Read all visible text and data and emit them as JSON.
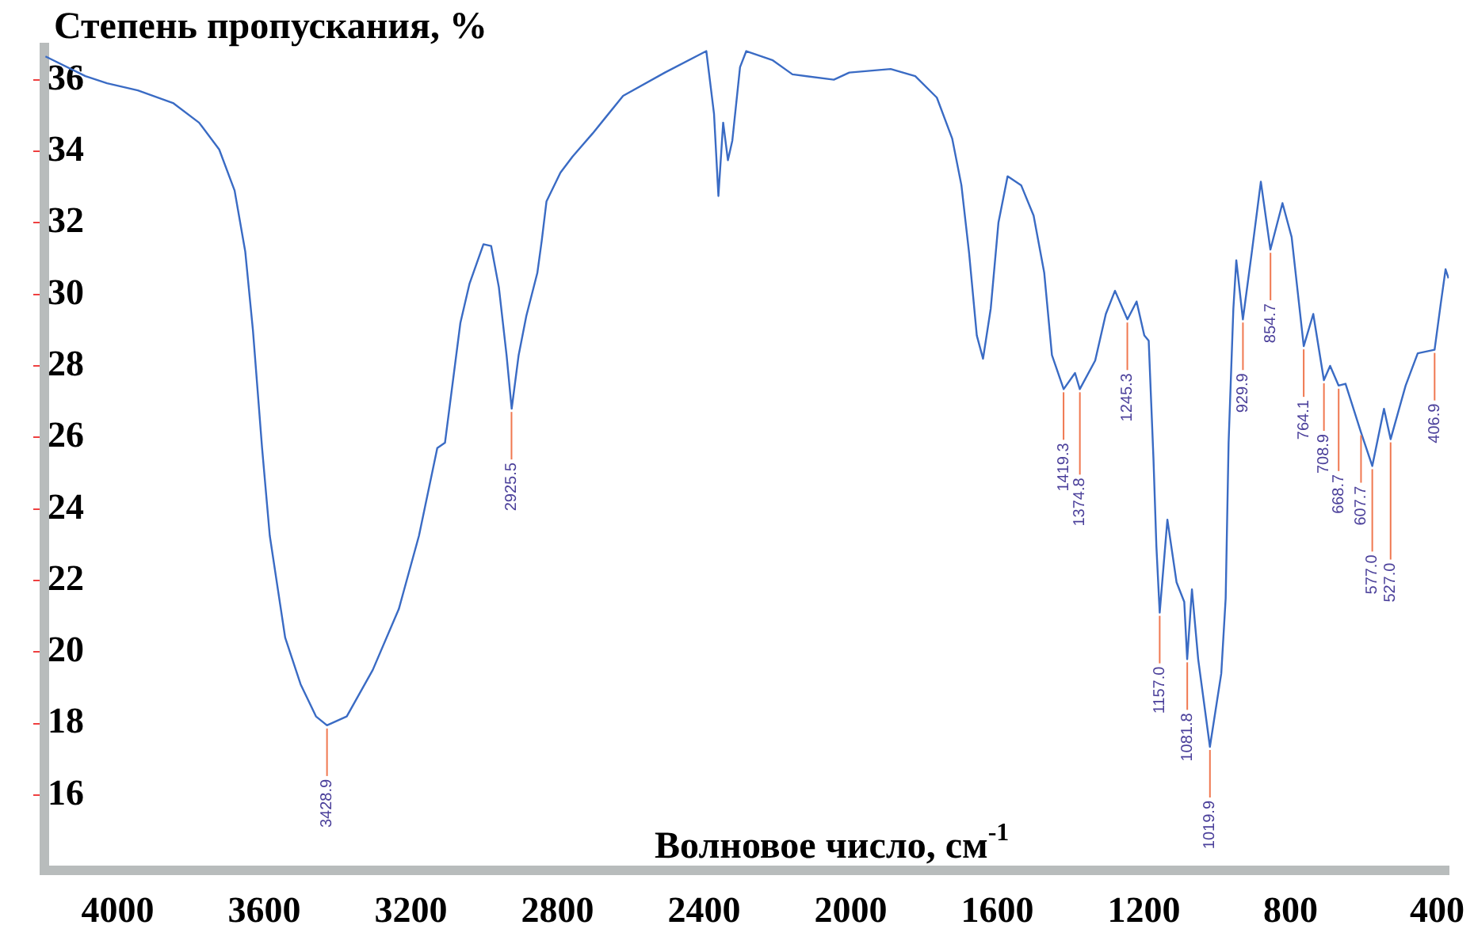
{
  "chart_data": {
    "type": "line",
    "title": "Степень пропускания, %",
    "xlabel": "Волновое число, см$^{-1}$",
    "color": "#3a6bc4",
    "x": [
      4197,
      4088,
      4029,
      3945,
      3849,
      3778,
      3723,
      3681,
      3652,
      3631,
      3606,
      3585,
      3543,
      3501,
      3459,
      3429,
      3375,
      3304,
      3233,
      3178,
      3128,
      3107,
      3065,
      3040,
      3002,
      2981,
      2960,
      2939,
      2925,
      2906,
      2885,
      2855,
      2843,
      2830,
      2792,
      2759,
      2704,
      2621,
      2507,
      2394,
      2373,
      2361,
      2348,
      2335,
      2323,
      2302,
      2285,
      2214,
      2159,
      2046,
      2004,
      1891,
      1824,
      1765,
      1723,
      1698,
      1677,
      1656,
      1639,
      1618,
      1597,
      1572,
      1535,
      1501,
      1472,
      1451,
      1419,
      1388,
      1375,
      1333,
      1304,
      1279,
      1245,
      1220,
      1199,
      1187,
      1174,
      1166,
      1157,
      1136,
      1111,
      1090,
      1082,
      1069,
      1052,
      1020,
      989,
      977,
      969,
      956,
      948,
      930,
      906,
      881,
      855,
      822,
      797,
      764,
      738,
      709,
      692,
      669,
      650,
      608,
      577,
      545,
      527,
      486,
      453,
      407,
      390,
      377,
      369
    ],
    "values": [
      36.65,
      36.1,
      35.9,
      35.7,
      35.35,
      34.8,
      34.05,
      32.9,
      31.2,
      29.0,
      25.7,
      23.25,
      20.4,
      19.1,
      18.2,
      17.95,
      18.2,
      19.5,
      21.2,
      23.25,
      25.7,
      25.85,
      29.2,
      30.3,
      31.4,
      31.35,
      30.2,
      28.3,
      26.8,
      28.3,
      29.4,
      30.6,
      31.5,
      32.6,
      33.4,
      33.85,
      34.5,
      35.55,
      36.2,
      36.8,
      35.05,
      32.75,
      34.8,
      33.75,
      34.3,
      36.35,
      36.8,
      36.55,
      36.15,
      36.0,
      36.2,
      36.3,
      36.1,
      35.5,
      34.35,
      33.05,
      31.15,
      28.85,
      28.2,
      29.6,
      32.0,
      33.3,
      33.05,
      32.2,
      30.6,
      28.3,
      27.35,
      27.8,
      27.35,
      28.15,
      29.45,
      30.1,
      29.3,
      29.8,
      28.85,
      28.7,
      25.4,
      22.95,
      21.1,
      23.7,
      21.95,
      21.4,
      19.8,
      21.75,
      19.8,
      17.35,
      19.4,
      21.5,
      25.85,
      29.6,
      30.95,
      29.3,
      31.15,
      33.15,
      31.25,
      32.55,
      31.6,
      28.55,
      29.45,
      27.6,
      28.0,
      27.45,
      27.5,
      26.15,
      25.2,
      26.8,
      25.95,
      27.45,
      28.35,
      28.45,
      29.75,
      30.7,
      30.45
    ],
    "xlim": [
      4200,
      368
    ],
    "xticks": [
      4000,
      3600,
      3200,
      2800,
      2400,
      2000,
      1600,
      1200,
      800,
      400
    ],
    "ylim": [
      13.9,
      36.9
    ],
    "yticks": [
      16,
      18,
      20,
      22,
      24,
      26,
      28,
      30,
      32,
      34,
      36
    ],
    "annotations": [
      {
        "text": "3428.9",
        "x": 3428.9,
        "y": 17.95
      },
      {
        "text": "2925.5",
        "x": 2925.5,
        "y": 26.8
      },
      {
        "text": "1419.3",
        "x": 1419.3,
        "y": 27.35
      },
      {
        "text": "1374.8",
        "x": 1374.8,
        "y": 27.35
      },
      {
        "text": "1245.3",
        "x": 1245.3,
        "y": 29.3
      },
      {
        "text": "1157.0",
        "x": 1157.0,
        "y": 21.1
      },
      {
        "text": "1081.8",
        "x": 1081.8,
        "y": 19.8
      },
      {
        "text": "1019.9",
        "x": 1019.9,
        "y": 17.35
      },
      {
        "text": "929.9",
        "x": 929.9,
        "y": 29.3
      },
      {
        "text": "854.7",
        "x": 854.7,
        "y": 31.25
      },
      {
        "text": "764.1",
        "x": 764.1,
        "y": 28.55
      },
      {
        "text": "708.9",
        "x": 708.9,
        "y": 27.6
      },
      {
        "text": "668.7",
        "x": 668.7,
        "y": 27.45
      },
      {
        "text": "607.7",
        "x": 607.7,
        "y": 26.15
      },
      {
        "text": "577.0",
        "x": 577.0,
        "y": 25.2
      },
      {
        "text": "527.0",
        "x": 527.0,
        "y": 25.95
      },
      {
        "text": "406.9",
        "x": 406.9,
        "y": 28.45
      }
    ]
  }
}
